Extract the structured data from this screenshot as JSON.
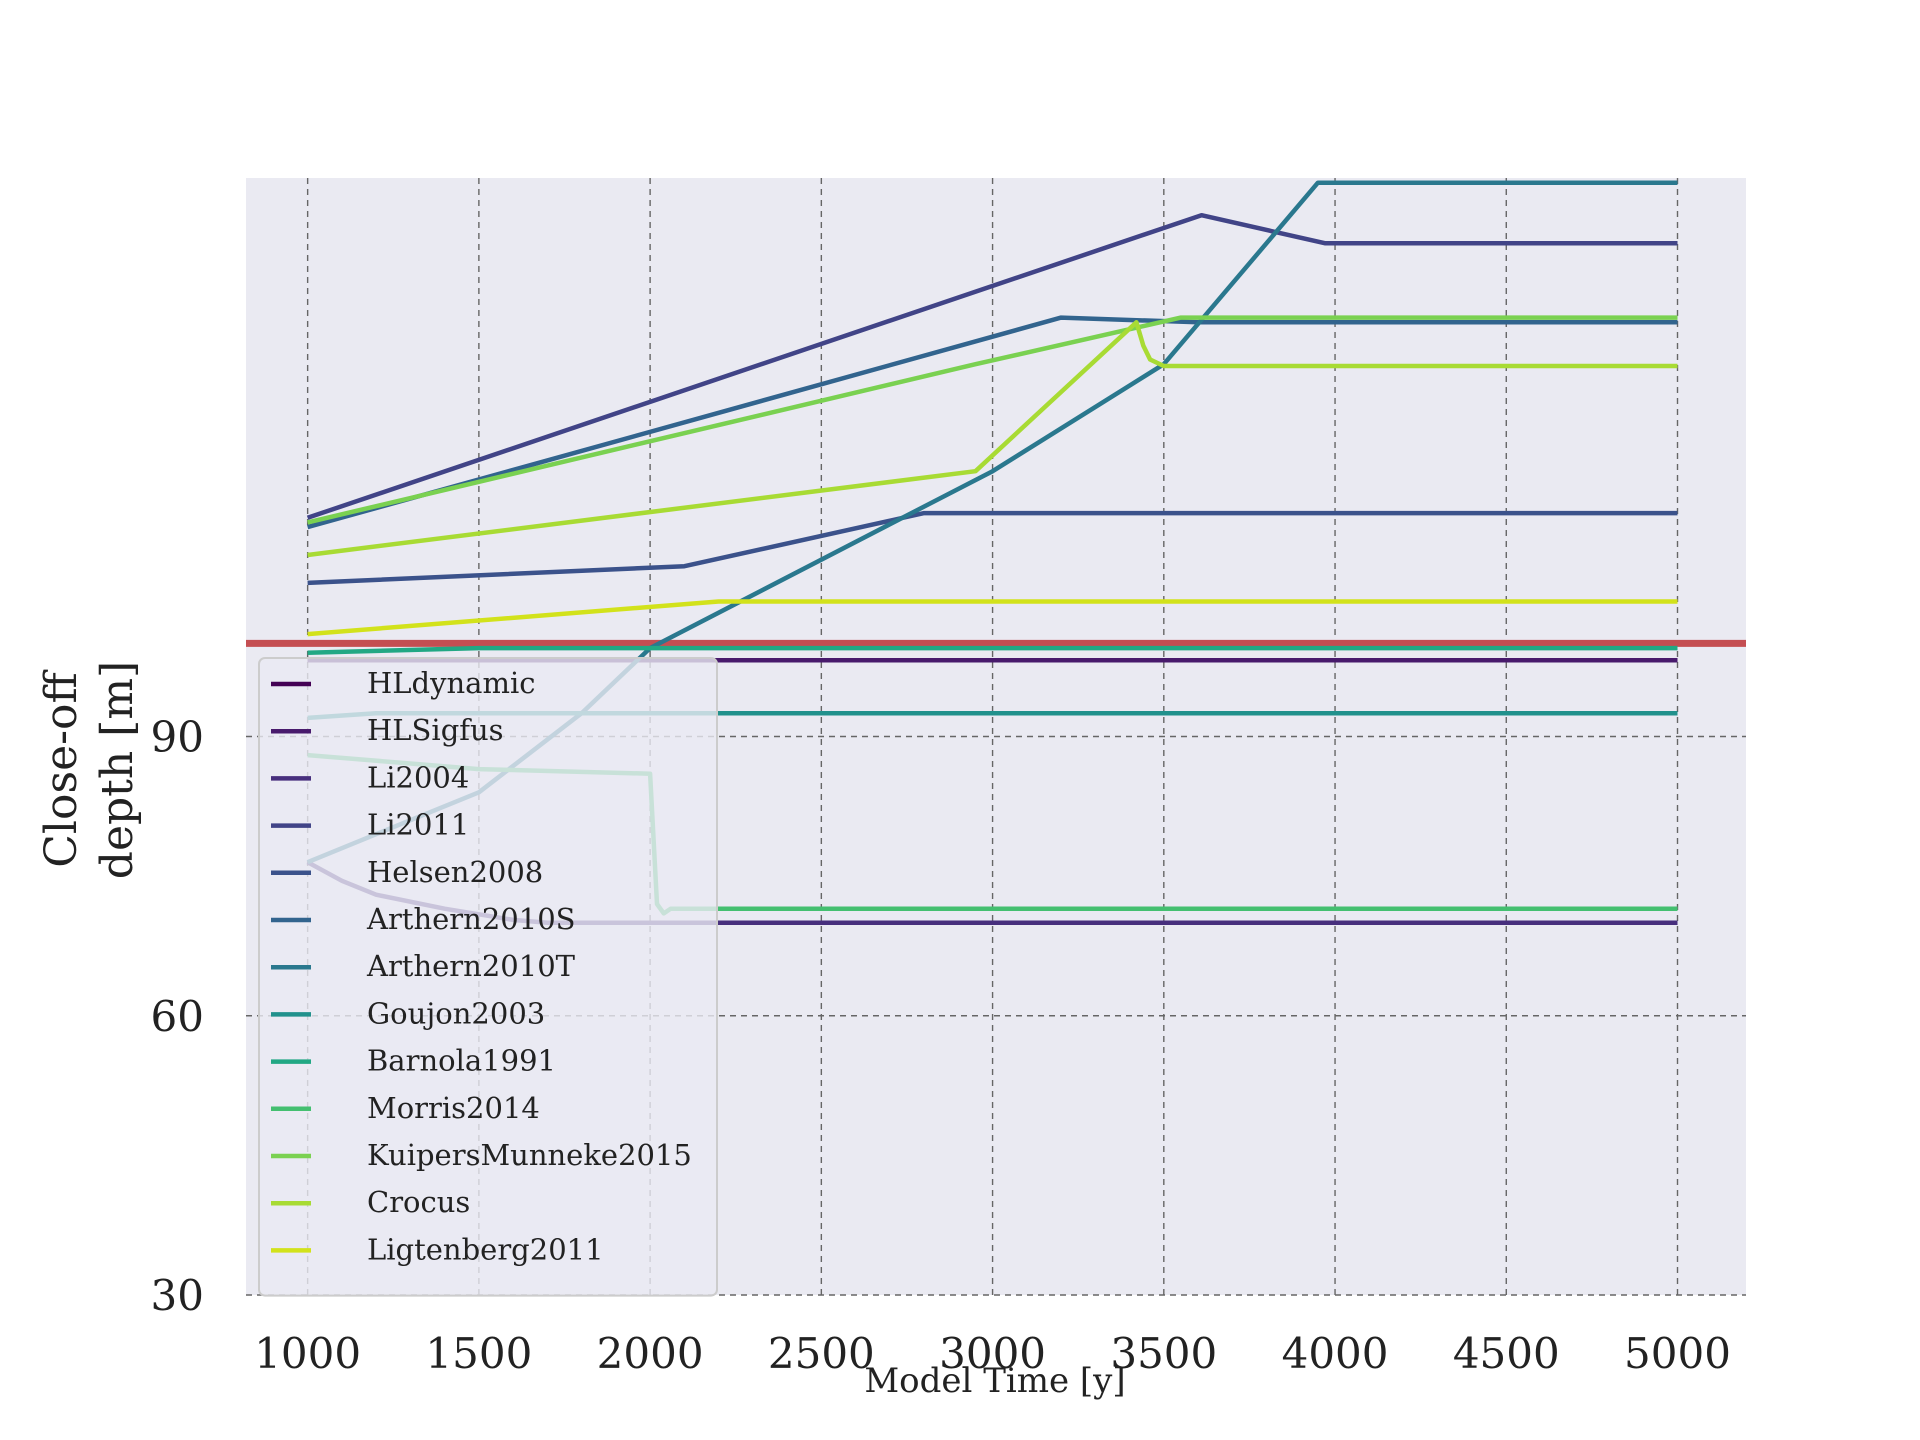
{
  "chart_data": {
    "type": "line",
    "xlabel": "Model Time [y]",
    "ylabel_lines": [
      "Close-off",
      "depth [m]"
    ],
    "xlim": [
      820,
      5200
    ],
    "ylim": [
      30,
      150
    ],
    "xticks": [
      1000,
      1500,
      2000,
      2500,
      3000,
      3500,
      4000,
      4500,
      5000
    ],
    "yticks": [
      30,
      60,
      90
    ],
    "grid": true,
    "legend_position": "lower-left",
    "reference_line": {
      "y": 100,
      "color": "#c44e52"
    },
    "series": [
      {
        "name": "HLdynamic",
        "color": "#440154",
        "points": [
          [
            1000,
            98.2
          ],
          [
            5000,
            98.2
          ]
        ]
      },
      {
        "name": "HLSigfus",
        "color": "#481a6c",
        "points": [
          [
            1000,
            98.2
          ],
          [
            5000,
            98.2
          ]
        ]
      },
      {
        "name": "Li2004",
        "color": "#472f7d",
        "points": [
          [
            1000,
            76.5
          ],
          [
            1100,
            74.5
          ],
          [
            1200,
            73
          ],
          [
            1400,
            71.5
          ],
          [
            1600,
            70.3
          ],
          [
            1700,
            70
          ],
          [
            5000,
            70
          ]
        ]
      },
      {
        "name": "Li2011",
        "color": "#414487",
        "points": [
          [
            1000,
            113.5
          ],
          [
            3610,
            146
          ],
          [
            3970,
            143
          ],
          [
            5000,
            143
          ]
        ]
      },
      {
        "name": "Helsen2008",
        "color": "#3b528b",
        "points": [
          [
            1000,
            106.5
          ],
          [
            2100,
            108.3
          ],
          [
            2800,
            114
          ],
          [
            5000,
            114
          ]
        ]
      },
      {
        "name": "Arthern2010S",
        "color": "#32648e",
        "points": [
          [
            1000,
            112.5
          ],
          [
            3200,
            135
          ],
          [
            3600,
            134.5
          ],
          [
            5000,
            134.5
          ]
        ]
      },
      {
        "name": "Arthern2010T",
        "color": "#2a788e",
        "points": [
          [
            1000,
            76.5
          ],
          [
            1200,
            79.5
          ],
          [
            1500,
            84
          ],
          [
            1800,
            92.5
          ],
          [
            2000,
            99.5
          ],
          [
            3000,
            118.5
          ],
          [
            3500,
            130
          ],
          [
            3950,
            149.5
          ],
          [
            5000,
            149.5
          ]
        ]
      },
      {
        "name": "Goujon2003",
        "color": "#21918c",
        "points": [
          [
            1000,
            92
          ],
          [
            1200,
            92.5
          ],
          [
            5000,
            92.5
          ]
        ]
      },
      {
        "name": "Barnola1991",
        "color": "#22a884",
        "points": [
          [
            1000,
            99
          ],
          [
            1500,
            99.5
          ],
          [
            5000,
            99.5
          ]
        ]
      },
      {
        "name": "Morris2014",
        "color": "#44bf70",
        "points": [
          [
            1000,
            88
          ],
          [
            1500,
            86.5
          ],
          [
            2000,
            86
          ],
          [
            2020,
            72
          ],
          [
            2040,
            71
          ],
          [
            2060,
            71.5
          ],
          [
            2100,
            71.5
          ],
          [
            5000,
            71.5
          ]
        ]
      },
      {
        "name": "KuipersMunneke2015",
        "color": "#7ad151",
        "points": [
          [
            1000,
            113
          ],
          [
            2950,
            130
          ],
          [
            3550,
            135
          ],
          [
            5000,
            135
          ]
        ]
      },
      {
        "name": "Crocus",
        "color": "#a8db34",
        "points": [
          [
            1000,
            109.5
          ],
          [
            2950,
            118.5
          ],
          [
            3420,
            134.5
          ],
          [
            3440,
            132
          ],
          [
            3460,
            130.5
          ],
          [
            3500,
            129.8
          ],
          [
            5000,
            129.8
          ]
        ]
      },
      {
        "name": "Ligtenberg2011",
        "color": "#d2e21b",
        "points": [
          [
            1000,
            101
          ],
          [
            2200,
            104.5
          ],
          [
            5000,
            104.5
          ]
        ]
      }
    ]
  }
}
